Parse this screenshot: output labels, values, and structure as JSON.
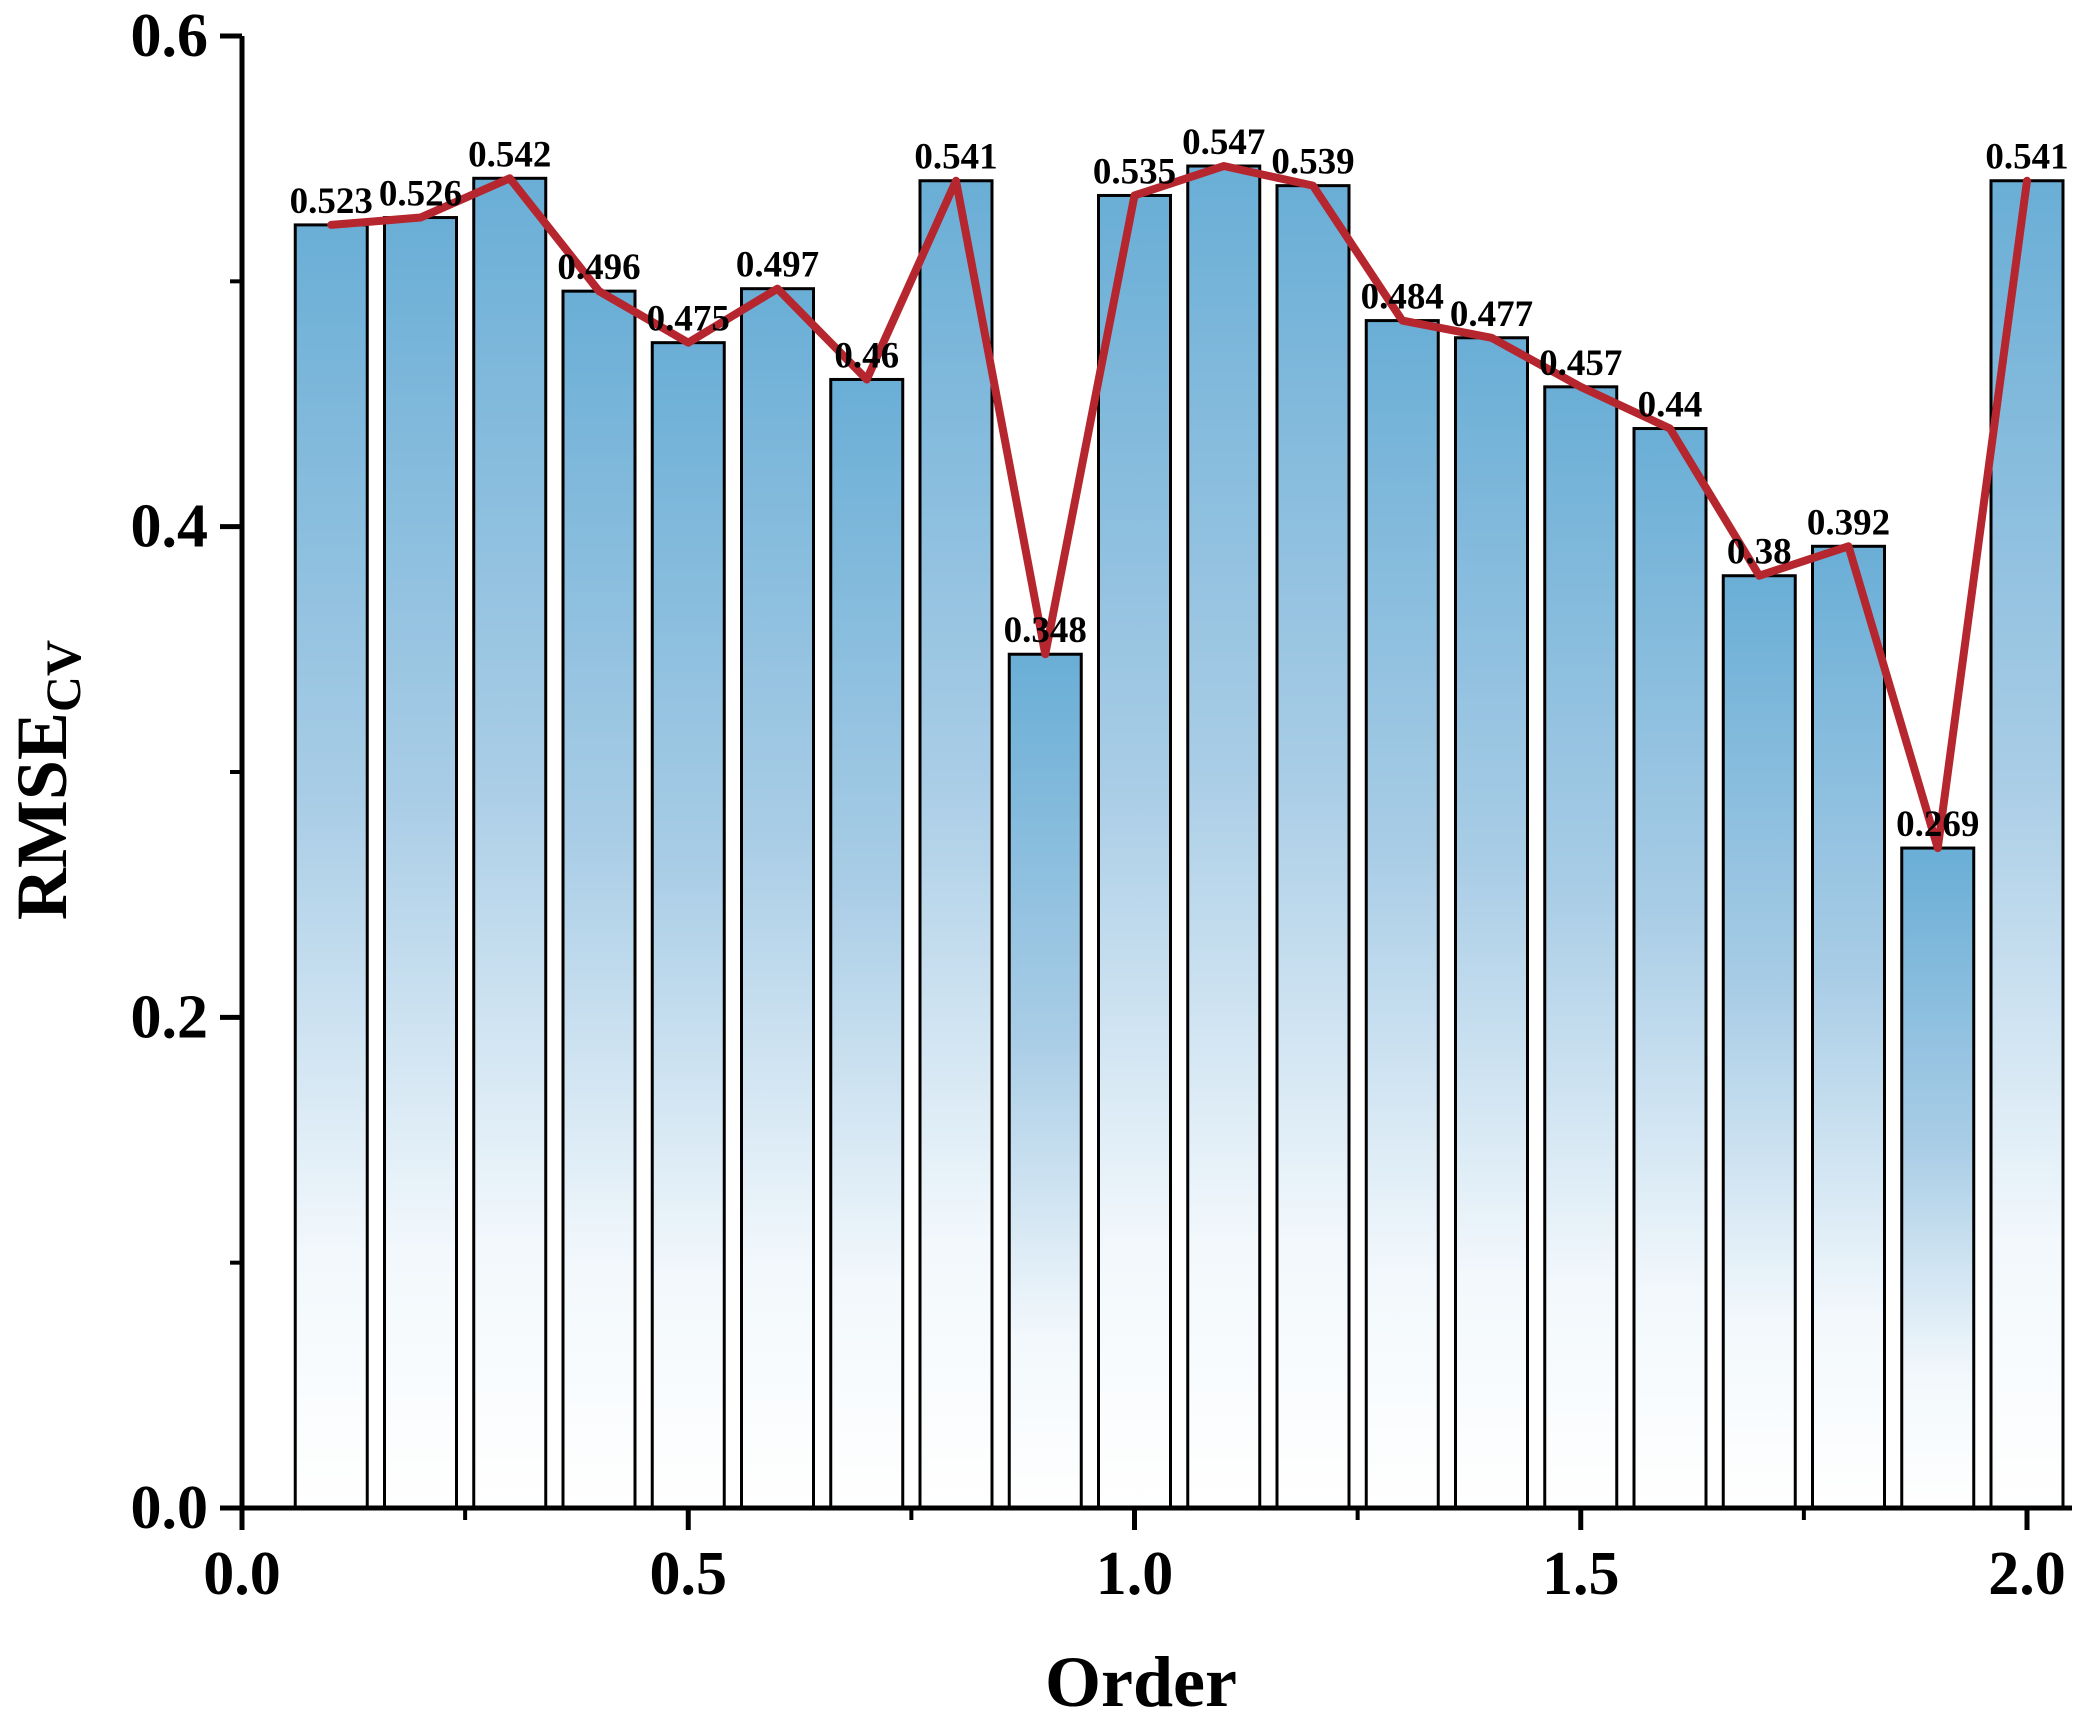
{
  "chart_data": {
    "type": "bar",
    "x": [
      0.1,
      0.2,
      0.3,
      0.4,
      0.5,
      0.6,
      0.7,
      0.8,
      0.9,
      1.0,
      1.1,
      1.2,
      1.3,
      1.4,
      1.5,
      1.6,
      1.7,
      1.8,
      1.9,
      2.0
    ],
    "values": [
      0.523,
      0.526,
      0.542,
      0.496,
      0.475,
      0.497,
      0.46,
      0.541,
      0.348,
      0.535,
      0.547,
      0.539,
      0.484,
      0.477,
      0.457,
      0.44,
      0.38,
      0.392,
      0.269,
      0.541
    ],
    "data_labels": [
      "0.523",
      "0.526",
      "0.542",
      "0.496",
      "0.475",
      "0.497",
      "0.46",
      "0.541",
      "0.348",
      "0.535",
      "0.547",
      "0.539",
      "0.484",
      "0.477",
      "0.457",
      "0.44",
      "0.38",
      "0.392",
      "0.269",
      "0.541"
    ],
    "overlay": "line",
    "xlabel": "Order",
    "ylabel_main": "RMSE",
    "ylabel_sub": "CV",
    "xlim": [
      0.0,
      2.05
    ],
    "ylim": [
      0.0,
      0.6
    ],
    "xticks": [
      "0.0",
      "0.5",
      "1.0",
      "1.5",
      "2.0"
    ],
    "yticks": [
      "0.0",
      "0.2",
      "0.4",
      "0.6"
    ],
    "grid": false,
    "legend": "none",
    "colors": {
      "bar_fill_dark": "#6aaed6",
      "bar_fill_light": "#ffffff",
      "bar_stroke": "#000000",
      "line": "#b5262e"
    }
  }
}
